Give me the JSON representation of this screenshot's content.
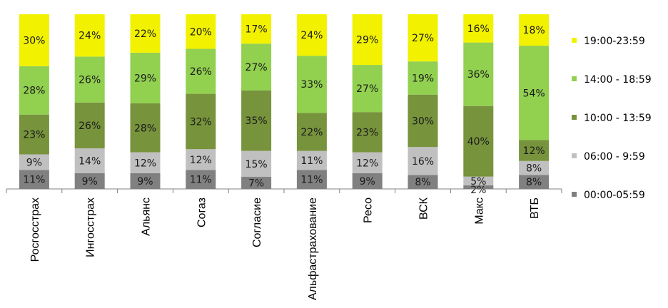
{
  "chart_data": {
    "type": "bar",
    "stacked": true,
    "percent": true,
    "categories": [
      "Росгосстрах",
      "Ингосстрах",
      "Альянс",
      "Согаз",
      "Согласие",
      "Альфастрахование",
      "Ресо",
      "ВСК",
      "Макс",
      "ВТБ"
    ],
    "series": [
      {
        "name": "00:00-05:59",
        "color": "#808080",
        "values": [
          11,
          9,
          9,
          11,
          7,
          11,
          9,
          8,
          2,
          8
        ]
      },
      {
        "name": "06:00 - 9:59",
        "color": "#c0c0c0",
        "values": [
          9,
          14,
          12,
          12,
          15,
          11,
          12,
          16,
          5,
          8
        ]
      },
      {
        "name": "10:00 - 13:59",
        "color": "#77933c",
        "values": [
          23,
          26,
          28,
          32,
          35,
          22,
          23,
          30,
          40,
          12
        ]
      },
      {
        "name": "14:00 - 18:59",
        "color": "#92d050",
        "values": [
          28,
          26,
          29,
          26,
          27,
          33,
          27,
          19,
          36,
          54
        ]
      },
      {
        "name": "19:00-23:59",
        "color": "#f2f200",
        "values": [
          30,
          24,
          22,
          20,
          17,
          24,
          29,
          27,
          16,
          18
        ]
      }
    ],
    "value_suffix": "%",
    "legend_position": "right",
    "grid": false
  }
}
